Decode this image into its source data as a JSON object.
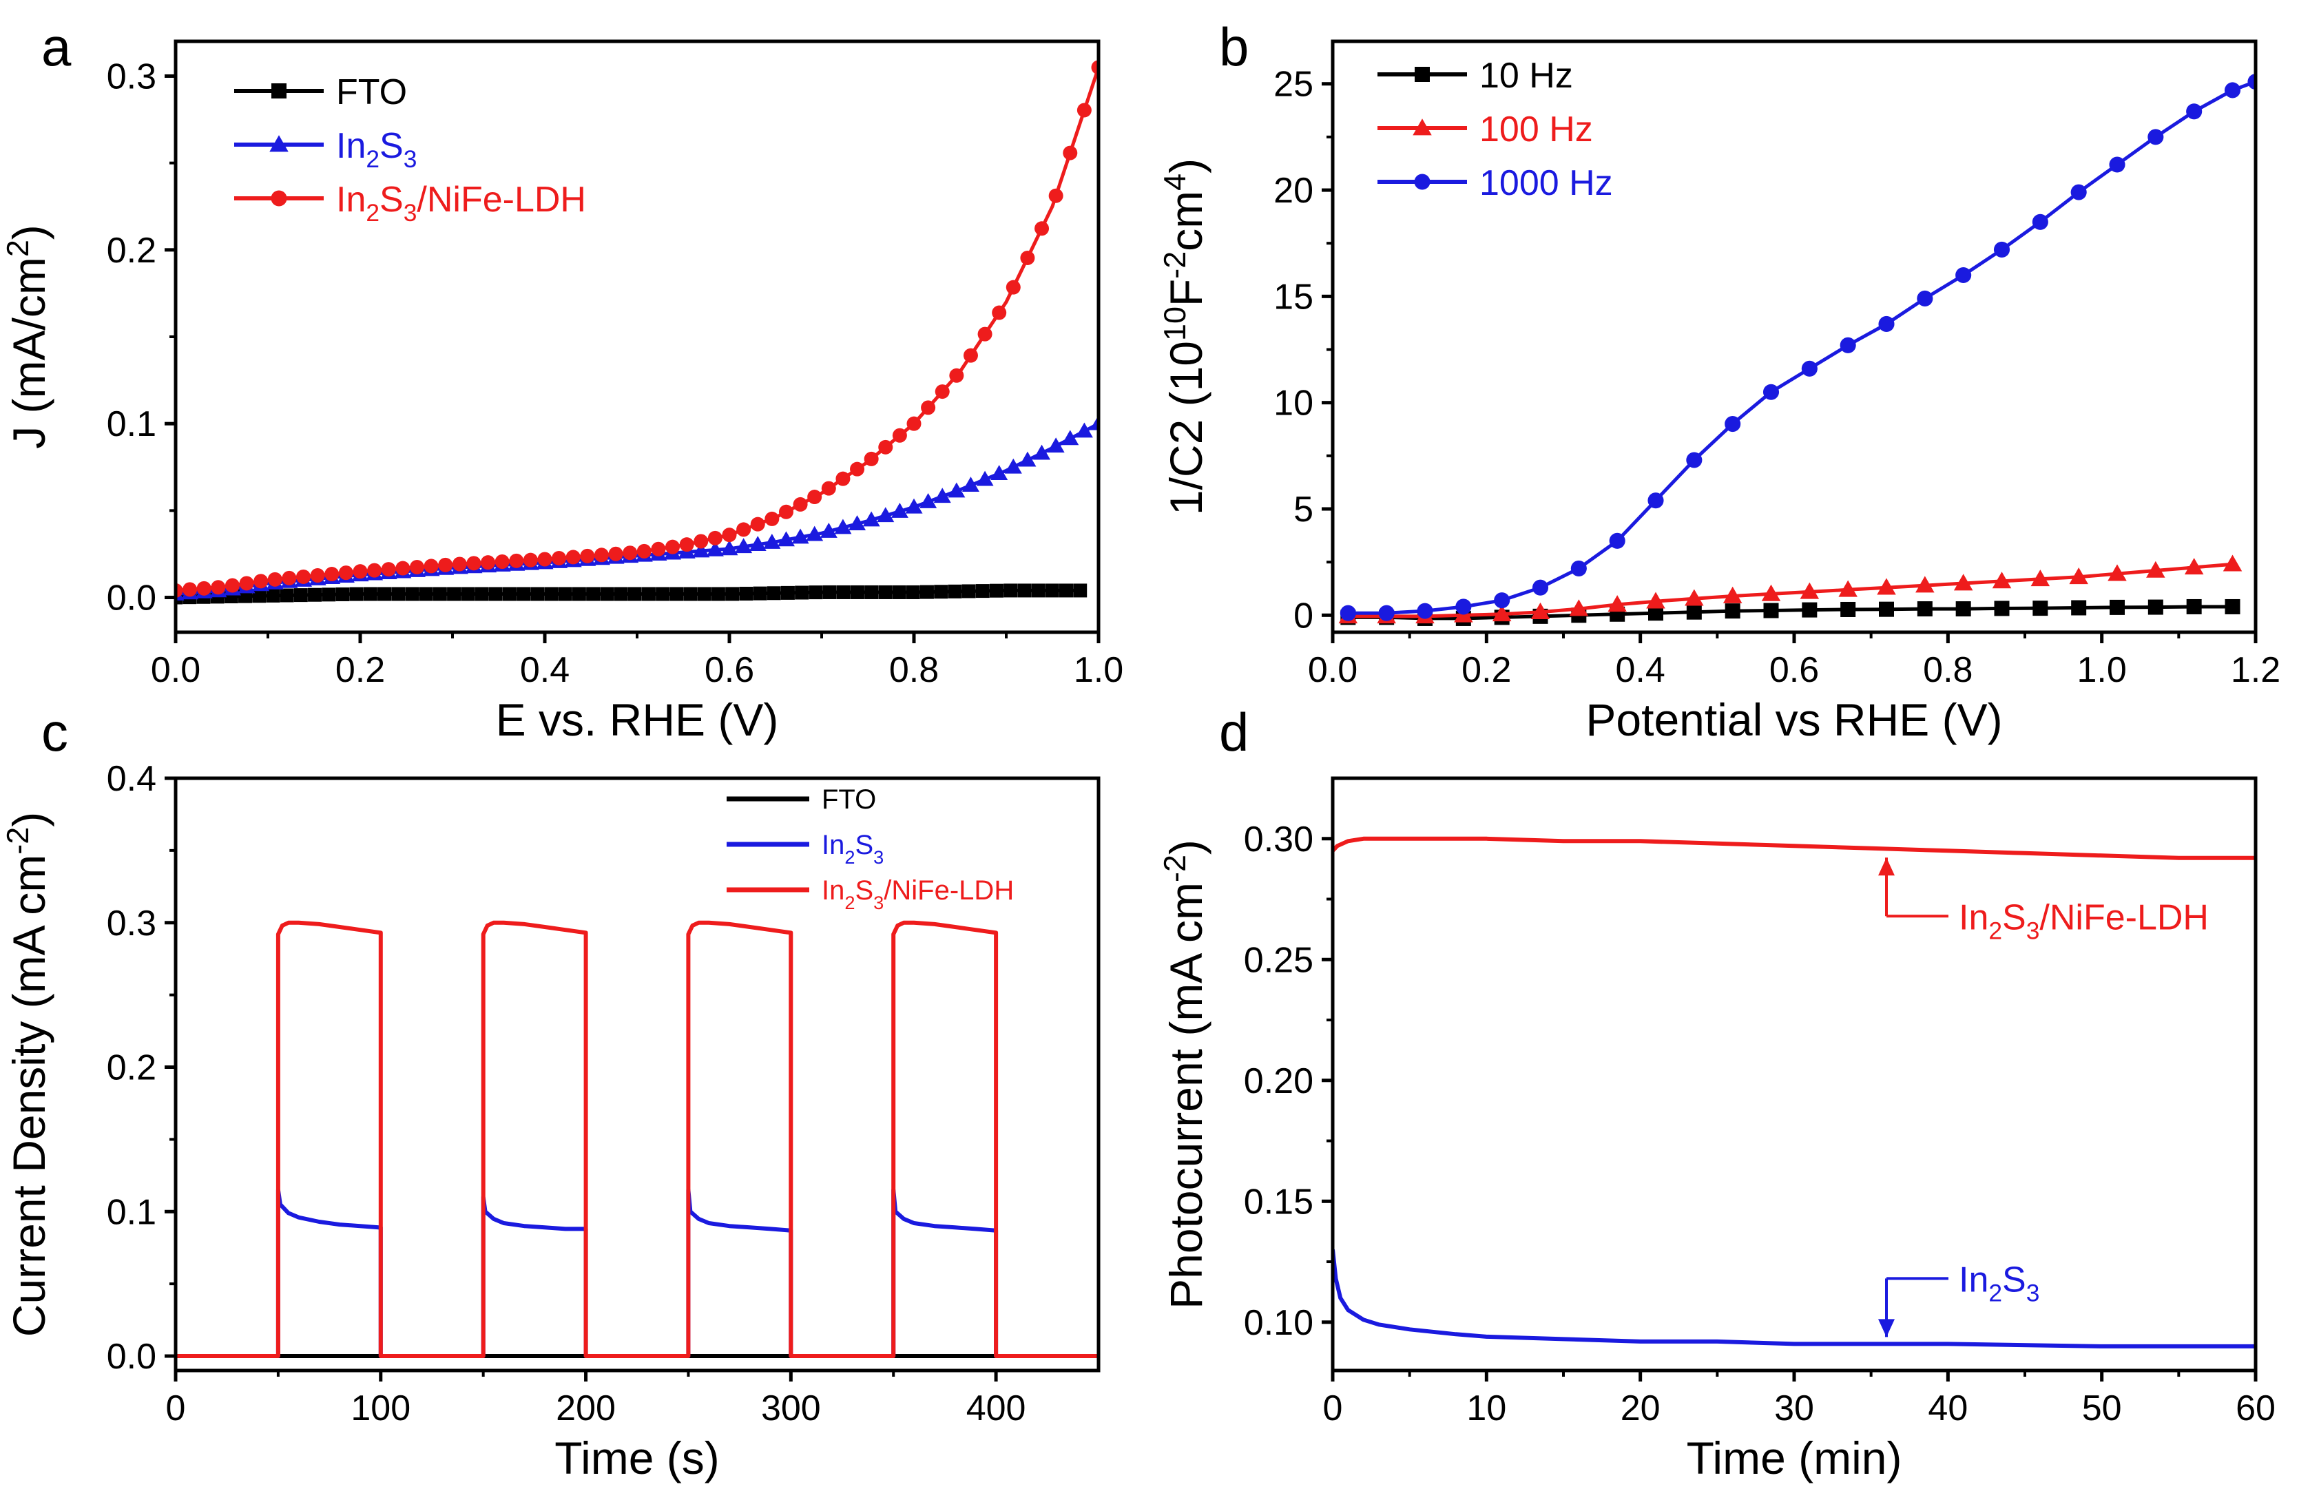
{
  "panels": [
    {
      "id": "a",
      "label": "a",
      "type": "line",
      "xlabel": "E vs. RHE (V)",
      "ylabel_main": "J ",
      "ylabel_paren_open": "(",
      "ylabel_unit": "mA/cm",
      "ylabel_sup": "2",
      "ylabel_paren_close": ")",
      "xlim": [
        0,
        1.0
      ],
      "ylim": [
        -0.02,
        0.32
      ],
      "xticks": [
        0.0,
        0.2,
        0.4,
        0.6,
        0.8,
        1.0
      ],
      "xtick_labels": [
        "0.0",
        "0.2",
        "0.4",
        "0.6",
        "0.8",
        "1.0"
      ],
      "yticks": [
        0.0,
        0.1,
        0.2,
        0.3
      ],
      "ytick_labels": [
        "0.0",
        "0.1",
        "0.2",
        "0.3"
      ],
      "legend": [
        {
          "name": "FTO",
          "color": "#000000",
          "marker": "square"
        },
        {
          "name_main": "In",
          "sub1": "2",
          "mid": "S",
          "sub2": "3",
          "color": "#1a1adf",
          "marker": "triangle"
        },
        {
          "name_main": "In",
          "sub1": "2",
          "mid": "S",
          "sub2": "3",
          "tail": "/NiFe-LDH",
          "color": "#ee1c1c",
          "marker": "circle"
        }
      ],
      "series": [
        {
          "name": "FTO",
          "color": "#000000",
          "x": [
            0,
            0.1,
            0.2,
            0.3,
            0.4,
            0.5,
            0.6,
            0.7,
            0.8,
            0.9,
            0.98
          ],
          "y": [
            0.0,
            0.001,
            0.002,
            0.002,
            0.002,
            0.002,
            0.002,
            0.003,
            0.003,
            0.004,
            0.004
          ]
        },
        {
          "name": "In2S3",
          "color": "#1a1adf",
          "x": [
            0,
            0.05,
            0.1,
            0.2,
            0.3,
            0.4,
            0.5,
            0.6,
            0.65,
            0.7,
            0.75,
            0.8,
            0.85,
            0.9,
            0.95,
            1.0
          ],
          "y": [
            0.002,
            0.004,
            0.008,
            0.013,
            0.017,
            0.02,
            0.024,
            0.028,
            0.032,
            0.037,
            0.044,
            0.052,
            0.062,
            0.073,
            0.086,
            0.1
          ]
        },
        {
          "name": "In2S3/NiFe-LDH",
          "color": "#ee1c1c",
          "x": [
            0,
            0.05,
            0.1,
            0.2,
            0.3,
            0.4,
            0.5,
            0.55,
            0.6,
            0.65,
            0.7,
            0.75,
            0.8,
            0.85,
            0.9,
            0.95,
            1.0
          ],
          "y": [
            0.004,
            0.006,
            0.01,
            0.015,
            0.019,
            0.022,
            0.026,
            0.03,
            0.036,
            0.046,
            0.06,
            0.078,
            0.1,
            0.13,
            0.17,
            0.225,
            0.305
          ]
        }
      ]
    },
    {
      "id": "b",
      "label": "b",
      "type": "line",
      "xlabel": "Potential vs RHE (V)",
      "ylabel_main": "1/C2 (10",
      "ylabel_sup1": "10",
      "ylabel_mid": "F",
      "ylabel_sup2": "-2",
      "ylabel_tail": "cm",
      "ylabel_sup3": "4",
      "ylabel_close": ")",
      "xlim": [
        0,
        1.2
      ],
      "ylim": [
        -0.8,
        27
      ],
      "xticks": [
        0.0,
        0.2,
        0.4,
        0.6,
        0.8,
        1.0,
        1.2
      ],
      "xtick_labels": [
        "0.0",
        "0.2",
        "0.4",
        "0.6",
        "0.8",
        "1.0",
        "1.2"
      ],
      "yticks": [
        0,
        5,
        10,
        15,
        20,
        25
      ],
      "ytick_labels": [
        "0",
        "5",
        "10",
        "15",
        "20",
        "25"
      ],
      "legend": [
        {
          "name": "10 Hz",
          "color": "#000000",
          "marker": "square"
        },
        {
          "name": "100 Hz",
          "color": "#ee1c1c",
          "marker": "triangle"
        },
        {
          "name": "1000 Hz",
          "color": "#1a1adf",
          "marker": "circle"
        }
      ],
      "series": [
        {
          "name": "10 Hz",
          "color": "#000000",
          "x": [
            0.02,
            0.07,
            0.12,
            0.17,
            0.22,
            0.27,
            0.32,
            0.37,
            0.42,
            0.47,
            0.52,
            0.57,
            0.62,
            0.67,
            0.72,
            0.77,
            0.82,
            0.87,
            0.92,
            0.97,
            1.02,
            1.07,
            1.12,
            1.17
          ],
          "y": [
            -0.1,
            -0.1,
            -0.15,
            -0.15,
            -0.1,
            -0.05,
            0.0,
            0.05,
            0.1,
            0.15,
            0.2,
            0.22,
            0.25,
            0.27,
            0.28,
            0.3,
            0.3,
            0.32,
            0.33,
            0.35,
            0.37,
            0.38,
            0.4,
            0.4
          ]
        },
        {
          "name": "100 Hz",
          "color": "#ee1c1c",
          "x": [
            0.02,
            0.07,
            0.12,
            0.17,
            0.22,
            0.27,
            0.32,
            0.37,
            0.42,
            0.47,
            0.52,
            0.57,
            0.62,
            0.67,
            0.72,
            0.77,
            0.82,
            0.87,
            0.92,
            0.97,
            1.02,
            1.07,
            1.12,
            1.17
          ],
          "y": [
            -0.05,
            -0.05,
            -0.05,
            0.0,
            0.05,
            0.15,
            0.3,
            0.5,
            0.65,
            0.78,
            0.9,
            1.0,
            1.1,
            1.2,
            1.3,
            1.4,
            1.5,
            1.6,
            1.7,
            1.8,
            1.95,
            2.1,
            2.25,
            2.4
          ]
        },
        {
          "name": "1000 Hz",
          "color": "#1a1adf",
          "x": [
            0.02,
            0.07,
            0.12,
            0.17,
            0.22,
            0.27,
            0.32,
            0.37,
            0.42,
            0.47,
            0.52,
            0.57,
            0.62,
            0.67,
            0.72,
            0.77,
            0.82,
            0.87,
            0.92,
            0.97,
            1.02,
            1.07,
            1.12,
            1.17,
            1.2
          ],
          "y": [
            0.1,
            0.1,
            0.2,
            0.4,
            0.7,
            1.3,
            2.2,
            3.5,
            5.4,
            7.3,
            9.0,
            10.5,
            11.6,
            12.7,
            13.7,
            14.9,
            16.0,
            17.2,
            18.5,
            19.9,
            21.2,
            22.5,
            23.7,
            24.7,
            25.1
          ]
        }
      ]
    },
    {
      "id": "c",
      "label": "c",
      "type": "line",
      "xlabel": "Time (s)",
      "ylabel_main": "Current Density ",
      "ylabel_paren_open": "(",
      "ylabel_unit": "mA cm",
      "ylabel_sup": "-2",
      "ylabel_paren_close": ")",
      "xlim": [
        0,
        450
      ],
      "ylim": [
        -0.01,
        0.4
      ],
      "xticks": [
        0,
        100,
        200,
        300,
        400
      ],
      "xtick_labels": [
        "0",
        "100",
        "200",
        "300",
        "400"
      ],
      "yticks": [
        0.0,
        0.1,
        0.2,
        0.3,
        0.4
      ],
      "ytick_labels": [
        "0.0",
        "0.1",
        "0.2",
        "0.3",
        "0.4"
      ],
      "legend": [
        {
          "name": "FTO",
          "color": "#000000",
          "marker": "line"
        },
        {
          "name_main": "In",
          "sub1": "2",
          "mid": "S",
          "sub2": "3",
          "color": "#1a1adf",
          "marker": "line"
        },
        {
          "name_main": "In",
          "sub1": "2",
          "mid": "S",
          "sub2": "3",
          "tail": "/NiFe-LDH",
          "color": "#ee1c1c",
          "marker": "line"
        }
      ],
      "series": [
        {
          "name": "FTO",
          "color": "#000000",
          "x": [
            0,
            450
          ],
          "y": [
            0.0,
            0.0
          ]
        },
        {
          "name": "In2S3",
          "color": "#1a1adf",
          "x": [
            0,
            50,
            50,
            51,
            55,
            60,
            70,
            80,
            90,
            99,
            100,
            100,
            150,
            150,
            151,
            155,
            160,
            170,
            180,
            190,
            199,
            200,
            200,
            250,
            250,
            251,
            255,
            260,
            270,
            280,
            290,
            299,
            300,
            300,
            350,
            350,
            351,
            355,
            360,
            370,
            380,
            390,
            399,
            400,
            400,
            450
          ],
          "y": [
            0,
            0,
            0.115,
            0.105,
            0.099,
            0.096,
            0.093,
            0.091,
            0.09,
            0.089,
            0.089,
            0,
            0,
            0.11,
            0.1,
            0.095,
            0.092,
            0.09,
            0.089,
            0.088,
            0.088,
            0.088,
            0,
            0,
            0.115,
            0.1,
            0.095,
            0.092,
            0.09,
            0.089,
            0.088,
            0.087,
            0.087,
            0,
            0,
            0.115,
            0.1,
            0.095,
            0.092,
            0.09,
            0.089,
            0.088,
            0.087,
            0.087,
            0,
            0
          ]
        },
        {
          "name": "In2S3/NiFe-LDH",
          "color": "#ee1c1c",
          "x": [
            0,
            50,
            50,
            52,
            55,
            60,
            70,
            80,
            90,
            100,
            100,
            150,
            150,
            152,
            155,
            160,
            170,
            180,
            190,
            200,
            200,
            250,
            250,
            252,
            255,
            260,
            270,
            280,
            290,
            300,
            300,
            350,
            350,
            352,
            355,
            360,
            370,
            380,
            390,
            400,
            400,
            450
          ],
          "y": [
            0,
            0,
            0.292,
            0.298,
            0.3,
            0.3,
            0.299,
            0.297,
            0.295,
            0.293,
            0,
            0,
            0.292,
            0.298,
            0.3,
            0.3,
            0.299,
            0.297,
            0.295,
            0.293,
            0,
            0,
            0.292,
            0.298,
            0.3,
            0.3,
            0.299,
            0.297,
            0.295,
            0.293,
            0,
            0,
            0.292,
            0.298,
            0.3,
            0.3,
            0.299,
            0.297,
            0.295,
            0.293,
            0,
            0
          ]
        }
      ]
    },
    {
      "id": "d",
      "label": "d",
      "type": "line",
      "xlabel": "Time (min)",
      "ylabel_main": "Photocurrent ",
      "ylabel_paren_open": "(",
      "ylabel_unit": "mA cm",
      "ylabel_sup": "-2",
      "ylabel_paren_close": ")",
      "xlim": [
        0,
        60
      ],
      "ylim": [
        0.08,
        0.325
      ],
      "xticks": [
        0,
        10,
        20,
        30,
        40,
        50,
        60
      ],
      "xtick_labels": [
        "0",
        "10",
        "20",
        "30",
        "40",
        "50",
        "60"
      ],
      "yticks": [
        0.1,
        0.15,
        0.2,
        0.25,
        0.3
      ],
      "ytick_labels": [
        "0.10",
        "0.15",
        "0.20",
        "0.25",
        "0.30"
      ],
      "annotations": [
        {
          "name_main": "In",
          "sub1": "2",
          "mid": "S",
          "sub2": "3",
          "tail": "/NiFe-LDH",
          "color": "#ee1c1c",
          "arrow_x": 36,
          "arrow_y": 0.295
        },
        {
          "name_main": "In",
          "sub1": "2",
          "mid": "S",
          "sub2": "3",
          "tail": "",
          "color": "#1a1adf",
          "arrow_x": 36,
          "arrow_y": 0.091
        }
      ],
      "series": [
        {
          "name": "In2S3/NiFe-LDH",
          "color": "#ee1c1c",
          "x": [
            0,
            0.3,
            1,
            2,
            4,
            6,
            10,
            15,
            20,
            25,
            30,
            35,
            40,
            45,
            50,
            55,
            60
          ],
          "y": [
            0.295,
            0.297,
            0.299,
            0.3,
            0.3,
            0.3,
            0.3,
            0.299,
            0.299,
            0.298,
            0.297,
            0.296,
            0.295,
            0.294,
            0.293,
            0.292,
            0.292
          ]
        },
        {
          "name": "In2S3",
          "color": "#1a1adf",
          "x": [
            0,
            0.2,
            0.5,
            1,
            2,
            3,
            5,
            8,
            10,
            15,
            20,
            25,
            30,
            40,
            50,
            60
          ],
          "y": [
            0.13,
            0.118,
            0.11,
            0.105,
            0.101,
            0.099,
            0.097,
            0.095,
            0.094,
            0.093,
            0.092,
            0.092,
            0.091,
            0.091,
            0.09,
            0.09
          ]
        }
      ]
    }
  ]
}
